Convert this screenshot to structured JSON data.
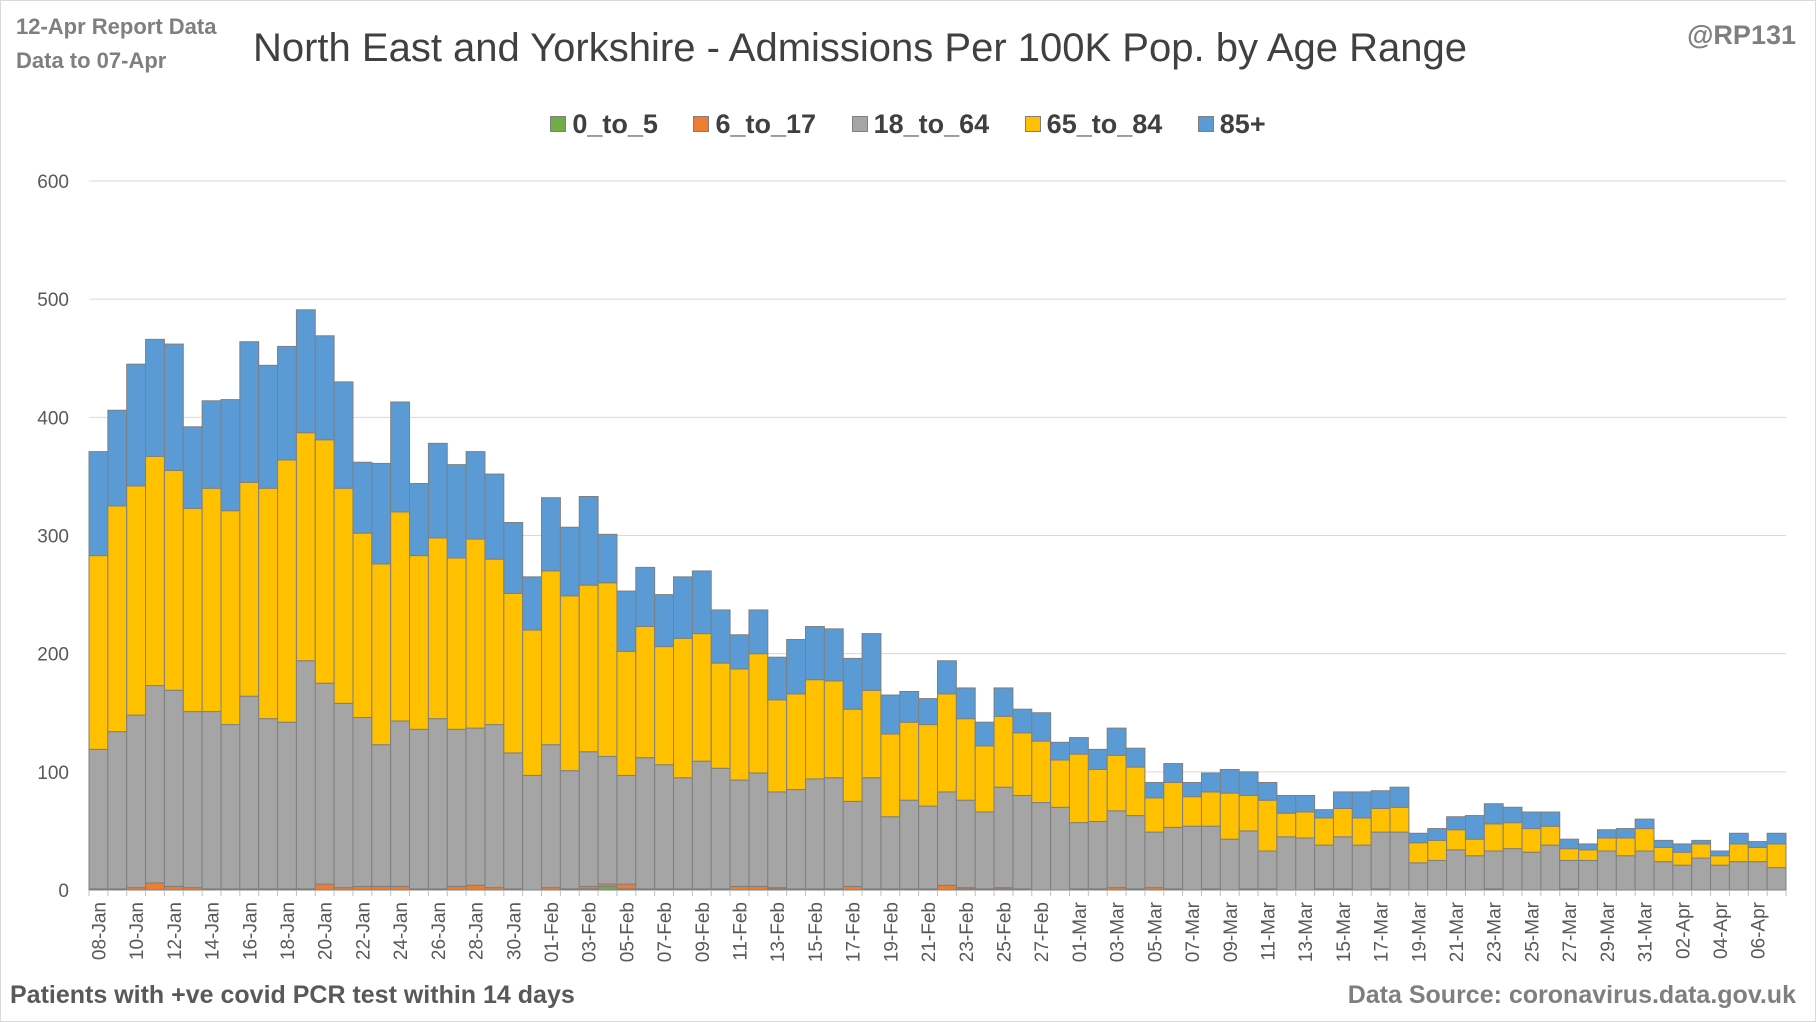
{
  "header": {
    "report_line1": "12-Apr Report Data",
    "report_line2": "Data to 07-Apr",
    "handle": "@RP131"
  },
  "footer": {
    "note": "Patients with  +ve covid PCR test within 14 days",
    "source": "Data Source: coronavirus.data.gov.uk"
  },
  "colors": {
    "0_to_5": "#70ad47",
    "6_to_17": "#ed7d31",
    "18_to_64": "#a5a5a5",
    "65_to_84": "#ffc000",
    "85+": "#5b9bd5",
    "grid": "#d9d9d9",
    "bar_outline": "#7f7f7f"
  },
  "chart_data": {
    "type": "bar",
    "stacked": true,
    "title": "North East and Yorkshire - Admissions Per 100K Pop. by Age Range",
    "xlabel": "",
    "ylabel": "",
    "ylim": [
      0,
      600
    ],
    "yticks": [
      0,
      100,
      200,
      300,
      400,
      500,
      600
    ],
    "grid": true,
    "legend_position": "top",
    "categories": [
      "08-Jan",
      "09-Jan",
      "10-Jan",
      "11-Jan",
      "12-Jan",
      "13-Jan",
      "14-Jan",
      "15-Jan",
      "16-Jan",
      "17-Jan",
      "18-Jan",
      "19-Jan",
      "20-Jan",
      "21-Jan",
      "22-Jan",
      "23-Jan",
      "24-Jan",
      "25-Jan",
      "26-Jan",
      "27-Jan",
      "28-Jan",
      "29-Jan",
      "30-Jan",
      "31-Jan",
      "01-Feb",
      "02-Feb",
      "03-Feb",
      "04-Feb",
      "05-Feb",
      "06-Feb",
      "07-Feb",
      "08-Feb",
      "09-Feb",
      "10-Feb",
      "11-Feb",
      "12-Feb",
      "13-Feb",
      "14-Feb",
      "15-Feb",
      "16-Feb",
      "17-Feb",
      "18-Feb",
      "19-Feb",
      "20-Feb",
      "21-Feb",
      "22-Feb",
      "23-Feb",
      "24-Feb",
      "25-Feb",
      "26-Feb",
      "27-Feb",
      "28-Feb",
      "01-Mar",
      "02-Mar",
      "03-Mar",
      "04-Mar",
      "05-Mar",
      "06-Mar",
      "07-Mar",
      "08-Mar",
      "09-Mar",
      "10-Mar",
      "11-Mar",
      "12-Mar",
      "13-Mar",
      "14-Mar",
      "15-Mar",
      "16-Mar",
      "17-Mar",
      "18-Mar",
      "19-Mar",
      "20-Mar",
      "21-Mar",
      "22-Mar",
      "23-Mar",
      "24-Mar",
      "25-Mar",
      "26-Mar",
      "27-Mar",
      "28-Mar",
      "29-Mar",
      "30-Mar",
      "31-Mar",
      "01-Apr",
      "02-Apr",
      "03-Apr",
      "04-Apr",
      "05-Apr",
      "06-Apr",
      "07-Apr"
    ],
    "x_tick_labels": [
      "08-Jan",
      "10-Jan",
      "12-Jan",
      "14-Jan",
      "16-Jan",
      "18-Jan",
      "20-Jan",
      "22-Jan",
      "24-Jan",
      "26-Jan",
      "28-Jan",
      "30-Jan",
      "01-Feb",
      "03-Feb",
      "05-Feb",
      "07-Feb",
      "09-Feb",
      "11-Feb",
      "13-Feb",
      "15-Feb",
      "17-Feb",
      "19-Feb",
      "21-Feb",
      "23-Feb",
      "25-Feb",
      "27-Feb",
      "01-Mar",
      "03-Mar",
      "05-Mar",
      "07-Mar",
      "09-Mar",
      "11-Mar",
      "13-Mar",
      "15-Mar",
      "17-Mar",
      "19-Mar",
      "21-Mar",
      "23-Mar",
      "25-Mar",
      "27-Mar",
      "29-Mar",
      "31-Mar",
      "02-Apr",
      "04-Apr",
      "06-Apr"
    ],
    "series": [
      {
        "name": "0_to_5",
        "values": [
          0,
          0,
          0,
          0,
          0,
          0,
          0,
          0,
          0,
          0,
          0,
          0,
          0,
          0,
          0,
          0,
          0,
          0,
          0,
          0,
          0,
          0,
          0,
          0,
          0,
          0,
          1,
          3,
          1,
          0,
          0,
          0,
          0,
          0,
          0,
          0,
          1,
          0,
          0,
          0,
          0,
          0,
          0,
          0,
          0,
          0,
          1,
          0,
          1,
          0,
          0,
          0,
          0,
          0,
          0,
          0,
          0,
          0,
          0,
          0,
          0,
          1,
          0,
          0,
          0,
          0,
          1,
          0,
          0,
          0,
          0,
          0,
          0,
          0,
          0,
          0,
          0,
          0,
          0,
          0,
          0,
          0,
          0,
          0,
          0,
          0,
          0,
          0,
          0,
          0
        ]
      },
      {
        "name": "6_to_17",
        "values": [
          1,
          1,
          2,
          6,
          3,
          2,
          1,
          1,
          1,
          1,
          1,
          1,
          5,
          2,
          3,
          3,
          3,
          1,
          1,
          3,
          4,
          2,
          1,
          0,
          2,
          1,
          2,
          2,
          4,
          1,
          1,
          1,
          1,
          1,
          3,
          3,
          1,
          1,
          1,
          1,
          3,
          1,
          1,
          1,
          1,
          4,
          1,
          1,
          1,
          1,
          0,
          0,
          1,
          1,
          2,
          1,
          2,
          1,
          0,
          1,
          0,
          0,
          1,
          0,
          0,
          1,
          0,
          0,
          1,
          0,
          0,
          0,
          0,
          0,
          1,
          0,
          0,
          0,
          1,
          0,
          0,
          0,
          0,
          0,
          0,
          0,
          0,
          0,
          0,
          0
        ]
      },
      {
        "name": "18_to_64",
        "values": [
          118,
          133,
          146,
          167,
          166,
          149,
          150,
          139,
          163,
          144,
          141,
          193,
          170,
          156,
          143,
          120,
          140,
          135,
          144,
          133,
          133,
          138,
          115,
          97,
          121,
          100,
          114,
          108,
          92,
          111,
          105,
          94,
          108,
          102,
          90,
          96,
          81,
          84,
          93,
          94,
          72,
          94,
          61,
          75,
          70,
          79,
          74,
          65,
          85,
          79,
          74,
          70,
          56,
          57,
          65,
          62,
          47,
          52,
          54,
          53,
          43,
          49,
          32,
          45,
          44,
          37,
          44,
          38,
          48,
          49,
          23,
          25,
          34,
          29,
          32,
          35,
          32,
          38,
          24,
          25,
          33,
          29,
          33,
          24,
          21,
          27,
          21,
          24,
          24,
          19
        ]
      },
      {
        "name": "65_to_84",
        "values": [
          164,
          191,
          194,
          194,
          186,
          172,
          189,
          181,
          181,
          195,
          222,
          193,
          206,
          182,
          156,
          153,
          177,
          147,
          153,
          145,
          160,
          140,
          135,
          123,
          147,
          148,
          141,
          147,
          105,
          111,
          100,
          118,
          108,
          89,
          94,
          101,
          78,
          81,
          84,
          82,
          78,
          74,
          70,
          66,
          69,
          83,
          69,
          56,
          60,
          53,
          52,
          40,
          58,
          44,
          47,
          41,
          29,
          38,
          25,
          29,
          39,
          30,
          43,
          20,
          22,
          23,
          24,
          23,
          20,
          21,
          17,
          17,
          17,
          14,
          23,
          22,
          20,
          16,
          10,
          9,
          11,
          15,
          19,
          12,
          11,
          12,
          8,
          15,
          12,
          20
        ]
      },
      {
        "name": "85+",
        "values": [
          88,
          81,
          103,
          99,
          107,
          69,
          74,
          94,
          119,
          104,
          96,
          104,
          88,
          90,
          60,
          85,
          93,
          61,
          80,
          79,
          74,
          72,
          60,
          45,
          62,
          58,
          75,
          41,
          51,
          50,
          44,
          52,
          53,
          45,
          29,
          37,
          36,
          46,
          45,
          44,
          43,
          48,
          33,
          26,
          22,
          28,
          26,
          20,
          24,
          20,
          24,
          15,
          14,
          17,
          23,
          16,
          13,
          16,
          12,
          16,
          20,
          20,
          15,
          15,
          14,
          7,
          14,
          22,
          15,
          17,
          8,
          10,
          11,
          20,
          17,
          13,
          14,
          12,
          8,
          5,
          7,
          8,
          8,
          6,
          7,
          3,
          4,
          9,
          5,
          9
        ]
      }
    ]
  }
}
